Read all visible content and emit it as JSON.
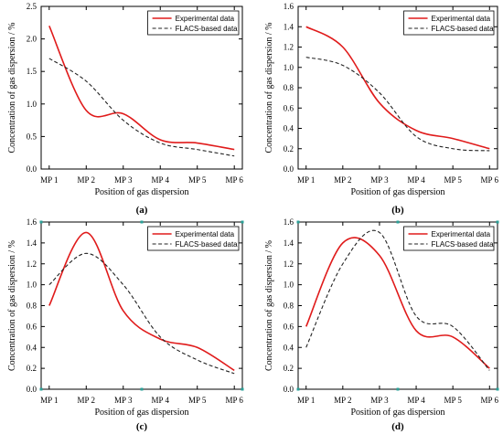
{
  "colors": {
    "experimental": "#e01b1b",
    "flacs": "#222222",
    "corner": "#2aa198"
  },
  "chart_data": [
    {
      "type": "line",
      "panel_label": "(a)",
      "x": [
        "MP 1",
        "MP 2",
        "MP 3",
        "MP 4",
        "MP 5",
        "MP 6"
      ],
      "xlabel": "Position of gas dispersion",
      "ylabel": "Concentration of gas dispersion / %",
      "ylim": [
        0,
        2.5
      ],
      "yticks": [
        0.0,
        0.5,
        1.0,
        1.5,
        2.0,
        2.5
      ],
      "ytick_labels": [
        "0.0",
        "0.5",
        "1.0",
        "1.5",
        "2.0",
        "2.5"
      ],
      "legend_position": "top-right",
      "series": [
        {
          "name": "Experimental data",
          "style": "solid",
          "values": [
            2.2,
            0.9,
            0.85,
            0.45,
            0.4,
            0.3
          ]
        },
        {
          "name": "FLACS-based data",
          "style": "dashed",
          "values": [
            1.7,
            1.35,
            0.75,
            0.4,
            0.3,
            0.2
          ]
        }
      ]
    },
    {
      "type": "line",
      "panel_label": "(b)",
      "x": [
        "MP 1",
        "MP 2",
        "MP 3",
        "MP 4",
        "MP 5",
        "MP 6"
      ],
      "xlabel": "Position of gas dispersion",
      "ylabel": "Concentration of gas dispersion / %",
      "ylim": [
        0,
        1.6
      ],
      "yticks": [
        0.0,
        0.2,
        0.4,
        0.6,
        0.8,
        1.0,
        1.2,
        1.4,
        1.6
      ],
      "ytick_labels": [
        "0.0",
        "0.2",
        "0.4",
        "0.6",
        "0.8",
        "1.0",
        "1.2",
        "1.4",
        "1.6"
      ],
      "legend_position": "top-right",
      "series": [
        {
          "name": "Experimental data",
          "style": "solid",
          "values": [
            1.4,
            1.2,
            0.65,
            0.38,
            0.3,
            0.2
          ]
        },
        {
          "name": "FLACS-based data",
          "style": "dashed",
          "values": [
            1.1,
            1.02,
            0.75,
            0.32,
            0.2,
            0.18
          ]
        }
      ]
    },
    {
      "type": "line",
      "panel_label": "(c)",
      "x": [
        "MP 1",
        "MP 2",
        "MP 3",
        "MP 4",
        "MP 5",
        "MP 6"
      ],
      "xlabel": "Position of gas dispersion",
      "ylabel": "Concentration of gas dispersion / %",
      "ylim": [
        0,
        1.6
      ],
      "yticks": [
        0.0,
        0.2,
        0.4,
        0.6,
        0.8,
        1.0,
        1.2,
        1.4,
        1.6
      ],
      "ytick_labels": [
        "0.0",
        "0.2",
        "0.4",
        "0.6",
        "0.8",
        "1.0",
        "1.2",
        "1.4",
        "1.6"
      ],
      "legend_position": "top-right",
      "series": [
        {
          "name": "Experimental data",
          "style": "solid",
          "values": [
            0.8,
            1.5,
            0.75,
            0.48,
            0.4,
            0.18
          ]
        },
        {
          "name": "FLACS-based data",
          "style": "dashed",
          "values": [
            1.0,
            1.3,
            1.0,
            0.5,
            0.28,
            0.15
          ]
        }
      ]
    },
    {
      "type": "line",
      "panel_label": "(d)",
      "x": [
        "MP 1",
        "MP 2",
        "MP 3",
        "MP 4",
        "MP 5",
        "MP 6"
      ],
      "xlabel": "Position of gas dispersion",
      "ylabel": "Concentration of gas dispersion / %",
      "ylim": [
        0,
        1.6
      ],
      "yticks": [
        0.0,
        0.2,
        0.4,
        0.6,
        0.8,
        1.0,
        1.2,
        1.4,
        1.6
      ],
      "ytick_labels": [
        "0.0",
        "0.2",
        "0.4",
        "0.6",
        "0.8",
        "1.0",
        "1.2",
        "1.4",
        "1.6"
      ],
      "legend_position": "top-right",
      "series": [
        {
          "name": "Experimental data",
          "style": "solid",
          "values": [
            0.6,
            1.4,
            1.28,
            0.56,
            0.5,
            0.2
          ]
        },
        {
          "name": "FLACS-based data",
          "style": "dashed",
          "values": [
            0.4,
            1.2,
            1.5,
            0.7,
            0.6,
            0.18
          ]
        }
      ]
    }
  ]
}
